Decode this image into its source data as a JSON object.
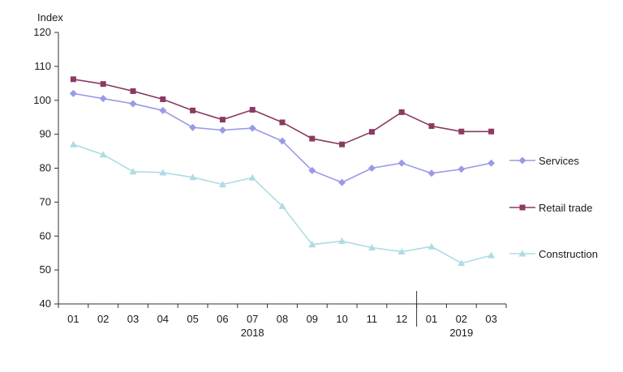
{
  "chart_data": {
    "type": "line",
    "ylabel": "Index",
    "ylim": [
      40,
      120
    ],
    "ytick_step": 10,
    "grid": false,
    "categories": [
      "01",
      "02",
      "03",
      "04",
      "05",
      "06",
      "07",
      "08",
      "09",
      "10",
      "11",
      "12",
      "01",
      "02",
      "03"
    ],
    "year_labels": [
      {
        "label": "2018",
        "under_category_index": 6
      },
      {
        "label": "2019",
        "under_category_index": 13
      }
    ],
    "year_divider_after_index": 11,
    "series": [
      {
        "name": "Services",
        "color": "#9a9ae6",
        "marker": "diamond",
        "values": [
          102.0,
          100.5,
          99.0,
          97.0,
          92.0,
          91.2,
          91.8,
          88.0,
          79.3,
          75.8,
          80.0,
          81.5,
          78.5,
          79.7,
          81.5
        ]
      },
      {
        "name": "Retail trade",
        "color": "#8b3a62",
        "marker": "square",
        "values": [
          106.2,
          104.8,
          102.7,
          100.3,
          97.0,
          94.3,
          97.2,
          93.5,
          88.7,
          87.0,
          90.7,
          96.5,
          92.4,
          90.8,
          90.8
        ]
      },
      {
        "name": "Construction",
        "color": "#aedbe4",
        "marker": "triangle",
        "values": [
          87.0,
          84.0,
          79.0,
          78.7,
          77.3,
          75.2,
          77.2,
          68.8,
          57.5,
          58.5,
          56.6,
          55.4,
          56.9,
          52.0,
          54.3
        ]
      }
    ]
  }
}
